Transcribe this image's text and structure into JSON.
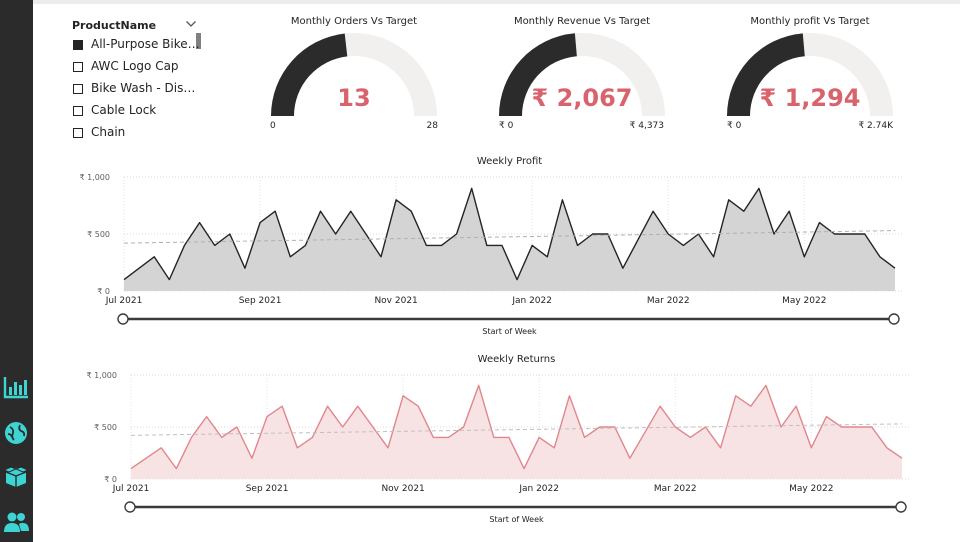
{
  "sidebar": {
    "icons": [
      "bar-chart-icon",
      "globe-icon",
      "box-icon",
      "users-icon"
    ]
  },
  "slicer": {
    "title": "ProductName",
    "items": [
      {
        "label": "All-Purpose Bike St...",
        "checked": true
      },
      {
        "label": "AWC Logo Cap",
        "checked": false
      },
      {
        "label": "Bike Wash - Dissol...",
        "checked": false
      },
      {
        "label": "Cable Lock",
        "checked": false
      },
      {
        "label": "Chain",
        "checked": false
      }
    ]
  },
  "gauges": [
    {
      "title": "Monthly Orders Vs Target",
      "value_text": "13",
      "value": 13,
      "min_text": "0",
      "max_text": "28",
      "min": 0,
      "max": 28
    },
    {
      "title": "Monthly Revenue Vs Target",
      "value_text": "₹ 2,067",
      "value": 2067,
      "min_text": "₹ 0",
      "max_text": "₹ 4,373",
      "min": 0,
      "max": 4373
    },
    {
      "title": "Monthly profit Vs Target",
      "value_text": "₹ 1,294",
      "value": 1294,
      "min_text": "₹ 0",
      "max_text": "₹ 2.74K",
      "min": 0,
      "max": 2740
    }
  ],
  "chart_data": [
    {
      "type": "area",
      "title": "Weekly Profit",
      "xlabel": "Start of Week",
      "ylabel": "",
      "ylim": [
        0,
        1000
      ],
      "y_ticks": [
        {
          "v": 0,
          "label": "₹ 0"
        },
        {
          "v": 500,
          "label": "₹ 500"
        },
        {
          "v": 1000,
          "label": "₹ 1,000"
        }
      ],
      "x_ticks": [
        "Jul 2021",
        "Sep 2021",
        "Nov 2021",
        "Jan 2022",
        "Mar 2022",
        "May 2022"
      ],
      "x_tick_weeks": [
        0,
        9,
        18,
        27,
        36,
        45
      ],
      "trend": [
        420,
        530
      ],
      "values": [
        100,
        200,
        300,
        100,
        400,
        600,
        400,
        500,
        200,
        600,
        700,
        300,
        400,
        700,
        500,
        700,
        500,
        300,
        800,
        700,
        400,
        400,
        500,
        900,
        400,
        400,
        100,
        400,
        300,
        800,
        400,
        500,
        500,
        200,
        450,
        700,
        500,
        400,
        500,
        300,
        800,
        700,
        900,
        500,
        700,
        300,
        600,
        500,
        500,
        500,
        300,
        200
      ],
      "grid": true,
      "colors": {
        "line": "#252423",
        "fill": "#d4d4d4",
        "trend": "#b0b0b0"
      }
    },
    {
      "type": "area",
      "title": "Weekly Returns",
      "xlabel": "Start of Week",
      "ylabel": "",
      "ylim": [
        0,
        1000
      ],
      "y_ticks": [
        {
          "v": 0,
          "label": "₹ 0"
        },
        {
          "v": 500,
          "label": "₹ 500"
        },
        {
          "v": 1000,
          "label": "₹ 1,000"
        }
      ],
      "x_ticks": [
        "Jul 2021",
        "Sep 2021",
        "Nov 2021",
        "Jan 2022",
        "Mar 2022",
        "May 2022"
      ],
      "x_tick_weeks": [
        0,
        9,
        18,
        27,
        36,
        45
      ],
      "trend": [
        420,
        530
      ],
      "values": [
        100,
        200,
        300,
        100,
        400,
        600,
        400,
        500,
        200,
        600,
        700,
        300,
        400,
        700,
        500,
        700,
        500,
        300,
        800,
        700,
        400,
        400,
        500,
        900,
        400,
        400,
        100,
        400,
        300,
        800,
        400,
        500,
        500,
        200,
        450,
        700,
        500,
        400,
        500,
        300,
        800,
        700,
        900,
        500,
        700,
        300,
        600,
        500,
        500,
        500,
        300,
        200
      ],
      "grid": true,
      "colors": {
        "line": "#e0868c",
        "fill": "#f8e3e4",
        "trend": "#c0c0c0"
      }
    }
  ],
  "colors": {
    "sidebar_bg": "#2b2b2b",
    "icon_accent": "#3fd4d4",
    "gauge_fill": "#2b2b2b",
    "gauge_track": "#f1f0ef",
    "kpi_text": "#d9636c"
  }
}
